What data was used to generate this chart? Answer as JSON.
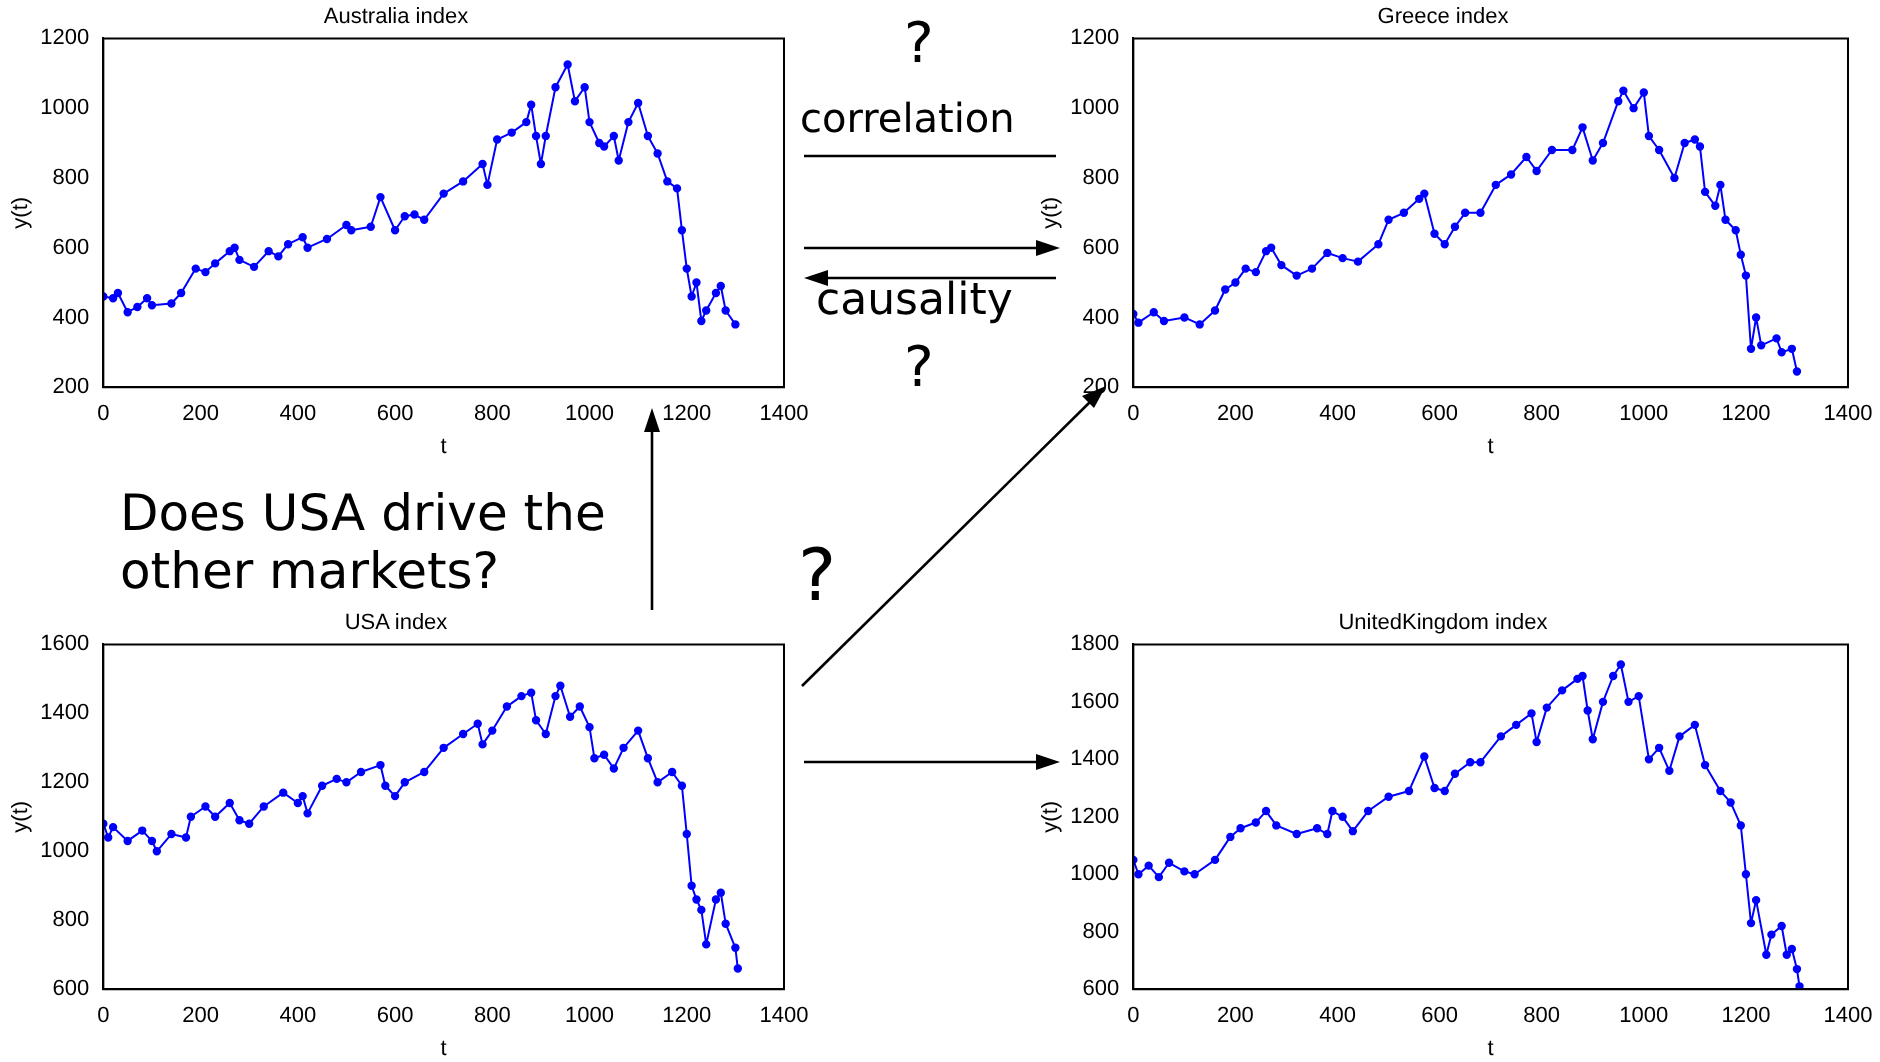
{
  "chart_data": [
    {
      "type": "line",
      "title": "Australia index",
      "xlabel": "t",
      "ylabel": "y(t)",
      "xlim": [
        0,
        1400
      ],
      "xticks": [
        0,
        200,
        400,
        600,
        800,
        1000,
        1200,
        1400
      ],
      "ylim": [
        200,
        1200
      ],
      "yticks": [
        200,
        400,
        600,
        800,
        1000,
        1200
      ],
      "grid": false,
      "marker": "circle",
      "line_style": "solid",
      "series": [
        {
          "color": "#0000ff",
          "x": [
            0,
            20,
            30,
            50,
            70,
            90,
            100,
            140,
            160,
            190,
            210,
            230,
            260,
            270,
            280,
            310,
            340,
            360,
            380,
            410,
            420,
            460,
            500,
            510,
            550,
            570,
            600,
            620,
            640,
            660,
            700,
            740,
            780,
            790,
            810,
            840,
            870,
            880,
            890,
            900,
            910,
            930,
            955,
            970,
            990,
            1000,
            1020,
            1030,
            1050,
            1060,
            1080,
            1100,
            1120,
            1140,
            1160,
            1180,
            1190,
            1200,
            1210,
            1220,
            1230,
            1240,
            1260,
            1270,
            1280,
            1300
          ],
          "values": [
            460,
            455,
            470,
            415,
            430,
            455,
            435,
            440,
            470,
            540,
            530,
            555,
            590,
            600,
            565,
            545,
            590,
            575,
            610,
            630,
            600,
            625,
            665,
            650,
            660,
            745,
            650,
            690,
            695,
            680,
            755,
            790,
            840,
            780,
            910,
            930,
            960,
            1010,
            920,
            840,
            920,
            1060,
            1125,
            1020,
            1060,
            960,
            900,
            890,
            920,
            850,
            960,
            1015,
            920,
            870,
            790,
            770,
            650,
            540,
            460,
            500,
            390,
            420,
            470,
            490,
            420,
            380
          ]
        }
      ]
    },
    {
      "type": "line",
      "title": "Greece index",
      "xlabel": "t",
      "ylabel": "y(t)",
      "xlim": [
        0,
        1400
      ],
      "xticks": [
        0,
        200,
        400,
        600,
        800,
        1000,
        1200,
        1400
      ],
      "ylim": [
        200,
        1200
      ],
      "yticks": [
        200,
        400,
        600,
        800,
        1000,
        1200
      ],
      "grid": false,
      "marker": "circle",
      "line_style": "solid",
      "series": [
        {
          "color": "#0000ff",
          "x": [
            0,
            10,
            40,
            60,
            100,
            130,
            160,
            180,
            200,
            220,
            240,
            260,
            270,
            290,
            320,
            350,
            380,
            410,
            440,
            480,
            500,
            530,
            560,
            570,
            590,
            610,
            630,
            650,
            680,
            710,
            740,
            770,
            790,
            820,
            860,
            880,
            900,
            920,
            950,
            960,
            980,
            1000,
            1010,
            1030,
            1060,
            1080,
            1100,
            1110,
            1120,
            1140,
            1150,
            1160,
            1180,
            1190,
            1200,
            1210,
            1220,
            1230,
            1260,
            1270,
            1290,
            1300
          ],
          "values": [
            410,
            385,
            415,
            390,
            400,
            380,
            420,
            480,
            500,
            540,
            530,
            590,
            600,
            550,
            520,
            540,
            585,
            570,
            560,
            610,
            680,
            700,
            740,
            755,
            640,
            610,
            660,
            700,
            700,
            780,
            810,
            860,
            820,
            880,
            880,
            945,
            850,
            900,
            1020,
            1050,
            1000,
            1045,
            920,
            880,
            800,
            900,
            910,
            890,
            760,
            720,
            780,
            680,
            650,
            580,
            520,
            310,
            400,
            320,
            340,
            300,
            310,
            245
          ]
        }
      ]
    },
    {
      "type": "line",
      "title": "USA index",
      "xlabel": "t",
      "ylabel": "y(t)",
      "xlim": [
        0,
        1400
      ],
      "xticks": [
        0,
        200,
        400,
        600,
        800,
        1000,
        1200,
        1400
      ],
      "ylim": [
        600,
        1600
      ],
      "yticks": [
        600,
        800,
        1000,
        1200,
        1400,
        1600
      ],
      "grid": false,
      "marker": "circle",
      "line_style": "solid",
      "series": [
        {
          "color": "#0000ff",
          "x": [
            0,
            10,
            20,
            50,
            80,
            100,
            110,
            140,
            170,
            180,
            210,
            230,
            260,
            280,
            300,
            330,
            370,
            400,
            410,
            420,
            450,
            480,
            500,
            530,
            570,
            580,
            600,
            620,
            660,
            700,
            740,
            770,
            780,
            800,
            830,
            860,
            880,
            890,
            910,
            930,
            940,
            960,
            980,
            1000,
            1010,
            1030,
            1050,
            1070,
            1100,
            1120,
            1140,
            1170,
            1190,
            1200,
            1210,
            1220,
            1230,
            1240,
            1260,
            1270,
            1280,
            1300,
            1305
          ],
          "values": [
            1080,
            1040,
            1070,
            1030,
            1060,
            1030,
            1000,
            1050,
            1040,
            1100,
            1130,
            1100,
            1140,
            1090,
            1080,
            1130,
            1170,
            1140,
            1160,
            1110,
            1190,
            1210,
            1200,
            1230,
            1250,
            1190,
            1160,
            1200,
            1230,
            1300,
            1340,
            1370,
            1310,
            1350,
            1420,
            1450,
            1460,
            1380,
            1340,
            1450,
            1480,
            1390,
            1420,
            1360,
            1270,
            1280,
            1240,
            1300,
            1350,
            1270,
            1200,
            1230,
            1190,
            1050,
            900,
            860,
            830,
            730,
            860,
            880,
            790,
            720,
            660
          ]
        }
      ]
    },
    {
      "type": "line",
      "title": "UnitedKingdom index",
      "xlabel": "t",
      "ylabel": "y(t)",
      "xlim": [
        0,
        1400
      ],
      "xticks": [
        0,
        200,
        400,
        600,
        800,
        1000,
        1200,
        1400
      ],
      "ylim": [
        600,
        1800
      ],
      "yticks": [
        600,
        800,
        1000,
        1200,
        1400,
        1600,
        1800
      ],
      "grid": false,
      "marker": "circle",
      "line_style": "solid",
      "series": [
        {
          "color": "#0000ff",
          "x": [
            0,
            10,
            30,
            50,
            70,
            100,
            120,
            160,
            190,
            210,
            240,
            260,
            280,
            320,
            360,
            380,
            390,
            410,
            430,
            460,
            500,
            540,
            570,
            590,
            610,
            630,
            660,
            680,
            720,
            750,
            780,
            790,
            810,
            840,
            870,
            880,
            890,
            900,
            920,
            940,
            955,
            970,
            990,
            1010,
            1030,
            1050,
            1070,
            1100,
            1120,
            1150,
            1170,
            1190,
            1200,
            1210,
            1220,
            1240,
            1250,
            1270,
            1280,
            1290,
            1300,
            1305
          ],
          "values": [
            1050,
            1000,
            1030,
            990,
            1040,
            1010,
            1000,
            1050,
            1130,
            1160,
            1180,
            1220,
            1170,
            1140,
            1160,
            1140,
            1220,
            1200,
            1150,
            1220,
            1270,
            1290,
            1410,
            1300,
            1290,
            1350,
            1390,
            1390,
            1480,
            1520,
            1560,
            1460,
            1580,
            1640,
            1680,
            1690,
            1570,
            1470,
            1600,
            1690,
            1730,
            1600,
            1620,
            1400,
            1440,
            1360,
            1480,
            1520,
            1380,
            1290,
            1250,
            1170,
            1000,
            830,
            910,
            720,
            790,
            820,
            720,
            740,
            670,
            610
          ]
        }
      ]
    },
    {
      "type": "other",
      "annotations": [
        "?",
        "correlation",
        "causality",
        "?",
        "Does USA drive the other markets?",
        "?"
      ]
    }
  ]
}
